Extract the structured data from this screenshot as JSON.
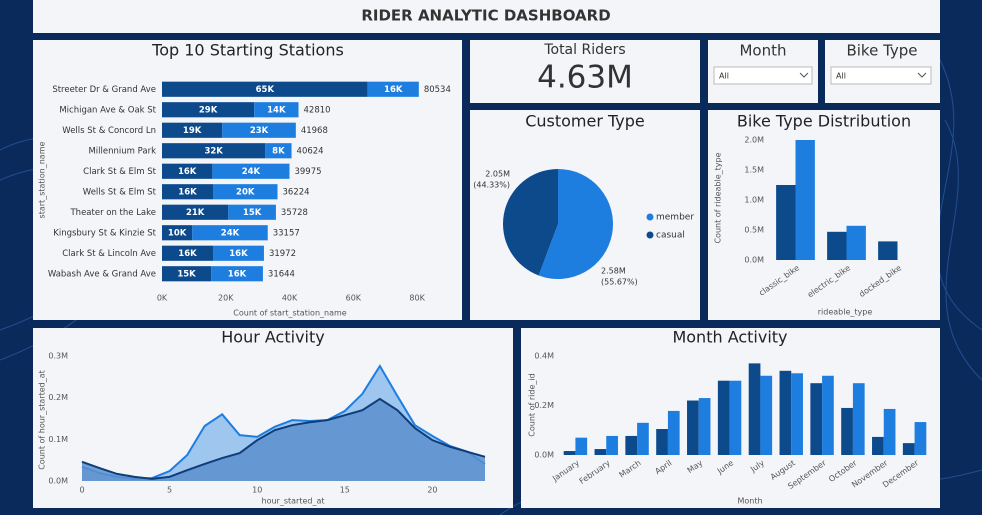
{
  "header": {
    "title": "RIDER ANALYTIC DASHBOARD"
  },
  "cards": {
    "total_riders": {
      "label": "Total Riders",
      "value": "4.63M"
    }
  },
  "slicers": [
    {
      "title": "Month",
      "selection": "All"
    },
    {
      "title": "Bike Type",
      "selection": "All"
    }
  ],
  "chart_data": [
    {
      "type": "bar",
      "orientation": "horizontal",
      "stacked": true,
      "title": "Top 10 Starting Stations",
      "x_label": "Count of start_station_name",
      "y_label": "start_station_name",
      "categories": [
        "Streeter Dr & Grand Ave",
        "Michigan Ave & Oak St",
        "Wells St & Concord Ln",
        "Millennium Park",
        "Clark St & Elm St",
        "Wells St & Elm St",
        "Theater on the Lake",
        "Kingsbury St & Kinzie St",
        "Clark St & Lincoln Ave",
        "Wabash Ave & Grand Ave"
      ],
      "series": [
        {
          "color": "#0d4a8c",
          "values": [
            64500,
            28900,
            18900,
            32400,
            15800,
            16000,
            20800,
            9500,
            16000,
            15400
          ],
          "value_labels": [
            "65K",
            "29K",
            "19K",
            "32K",
            "16K",
            "16K",
            "21K",
            "10K",
            "16K",
            "15K"
          ]
        },
        {
          "color": "#1e7ee0",
          "values": [
            16034,
            13910,
            23068,
            8224,
            24175,
            20224,
            14928,
            23657,
            15972,
            16244
          ],
          "value_labels": [
            "16K",
            "14K",
            "23K",
            "8K",
            "24K",
            "20K",
            "15K",
            "24K",
            "16K",
            "16K"
          ]
        }
      ],
      "totals": [
        80534,
        42810,
        41968,
        40624,
        39975,
        36224,
        35728,
        33157,
        31972,
        31644
      ],
      "xlim": [
        0,
        90000
      ],
      "xticks": [
        {
          "value": 0,
          "label": "0K"
        },
        {
          "value": 20000,
          "label": "20K"
        },
        {
          "value": 40000,
          "label": "40K"
        },
        {
          "value": 60000,
          "label": "60K"
        },
        {
          "value": 80000,
          "label": "80K"
        }
      ]
    },
    {
      "type": "pie",
      "title": "Customer Type",
      "categories": [
        "member",
        "casual"
      ],
      "colors": [
        "#1e7ee0",
        "#0d4a8c"
      ],
      "values": [
        2.58,
        2.05
      ],
      "value_labels": [
        "2.58M",
        "2.05M"
      ],
      "percent_labels": [
        "(55.67%)",
        "(44.33%)"
      ]
    },
    {
      "type": "bar",
      "orientation": "vertical",
      "title": "Bike Type Distribution",
      "x_label": "rideable_type",
      "y_label": "Count of rideable_type",
      "categories": [
        "classic_bike",
        "electric_bike",
        "docked_bike"
      ],
      "series": [
        {
          "color": "#0d4a8c",
          "values": [
            1.25,
            0.47,
            0.31
          ]
        },
        {
          "color": "#1e7ee0",
          "values": [
            2.0,
            0.57,
            null
          ]
        }
      ],
      "ylim": [
        0,
        2.1
      ],
      "yticks": [
        {
          "value": 0,
          "label": "0.0M"
        },
        {
          "value": 0.5,
          "label": "0.5M"
        },
        {
          "value": 1.0,
          "label": "1.0M"
        },
        {
          "value": 1.5,
          "label": "1.5M"
        },
        {
          "value": 2.0,
          "label": "2.0M"
        }
      ]
    },
    {
      "type": "area",
      "title": "Hour Activity",
      "x_label": "hour_started_at",
      "y_label": "Count of hour_started_at",
      "x": [
        0,
        1,
        2,
        3,
        4,
        5,
        6,
        7,
        8,
        9,
        10,
        11,
        12,
        13,
        14,
        15,
        16,
        17,
        18,
        19,
        20,
        21,
        22,
        23
      ],
      "series": [
        {
          "color": "#1e7ee0",
          "fill": "#9fc6ee",
          "values": [
            0.034,
            0.019,
            0.01,
            0.005,
            0.007,
            0.024,
            0.062,
            0.132,
            0.16,
            0.11,
            0.106,
            0.13,
            0.146,
            0.144,
            0.146,
            0.168,
            0.209,
            0.276,
            0.204,
            0.134,
            0.108,
            0.084,
            0.07,
            0.041
          ]
        },
        {
          "color": "#0d3d7a",
          "fill": "#5a8fcd",
          "values": [
            0.046,
            0.031,
            0.017,
            0.01,
            0.005,
            0.01,
            0.026,
            0.041,
            0.055,
            0.067,
            0.098,
            0.122,
            0.134,
            0.141,
            0.146,
            0.158,
            0.17,
            0.197,
            0.17,
            0.127,
            0.098,
            0.082,
            0.07,
            0.058
          ]
        }
      ],
      "xlim": [
        0,
        23
      ],
      "xticks": [
        0,
        5,
        10,
        15,
        20
      ],
      "ylim": [
        0,
        0.3
      ],
      "yticks": [
        {
          "value": 0,
          "label": "0.0M"
        },
        {
          "value": 0.1,
          "label": "0.1M"
        },
        {
          "value": 0.2,
          "label": "0.2M"
        },
        {
          "value": 0.3,
          "label": "0.3M"
        }
      ]
    },
    {
      "type": "bar",
      "orientation": "vertical",
      "title": "Month Activity",
      "x_label": "Month",
      "y_label": "Count of ride_id",
      "categories": [
        "January",
        "February",
        "March",
        "April",
        "May",
        "June",
        "July",
        "August",
        "September",
        "October",
        "November",
        "December"
      ],
      "series": [
        {
          "color": "#0d4a8c",
          "values": [
            0.016,
            0.024,
            0.077,
            0.105,
            0.22,
            0.3,
            0.37,
            0.34,
            0.29,
            0.19,
            0.073,
            0.048
          ]
        },
        {
          "color": "#1e7ee0",
          "values": [
            0.07,
            0.077,
            0.13,
            0.178,
            0.23,
            0.3,
            0.32,
            0.33,
            0.32,
            0.29,
            0.186,
            0.133
          ]
        }
      ],
      "ylim": [
        0,
        0.42
      ],
      "yticks": [
        {
          "value": 0,
          "label": "0.0M"
        },
        {
          "value": 0.2,
          "label": "0.2M"
        },
        {
          "value": 0.4,
          "label": "0.4M"
        }
      ]
    }
  ]
}
